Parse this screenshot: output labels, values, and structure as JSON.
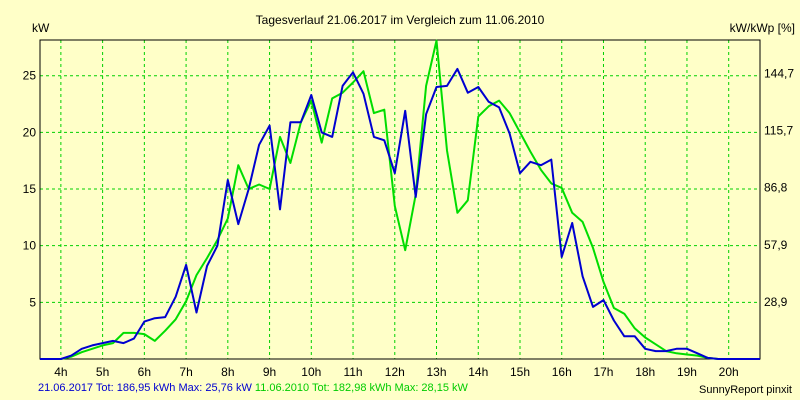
{
  "chart_data": {
    "type": "line",
    "title": "Tagesverlauf 21.06.2017 im Vergleich zum 11.06.2010",
    "ylabel": "kW",
    "y2label": "kW/kWp [%]",
    "xlim": [
      3.5,
      20.75
    ],
    "ylim": [
      0,
      28.15
    ],
    "x_ticks": [
      4,
      5,
      6,
      7,
      8,
      9,
      10,
      11,
      12,
      13,
      14,
      15,
      16,
      17,
      18,
      19,
      20
    ],
    "x_tick_labels": [
      "4h",
      "5h",
      "6h",
      "7h",
      "8h",
      "9h",
      "10h",
      "11h",
      "12h",
      "13h",
      "14h",
      "15h",
      "16h",
      "17h",
      "18h",
      "19h",
      "20h"
    ],
    "y_ticks": [
      5,
      10,
      15,
      20,
      25
    ],
    "y_tick_labels": [
      "5",
      "10",
      "15",
      "20",
      "25"
    ],
    "y2_ticks": [
      5.04,
      10.08,
      15.12,
      20.16,
      25.2
    ],
    "y2_tick_labels": [
      "28,9",
      "57,9",
      "86,8",
      "115,7",
      "144,7"
    ],
    "grid": true,
    "series": [
      {
        "name": "21.06.2017",
        "color": "#0000d0",
        "x": [
          3.5,
          3.75,
          4,
          4.25,
          4.5,
          4.75,
          5,
          5.25,
          5.5,
          5.75,
          6,
          6.25,
          6.5,
          6.75,
          7,
          7.25,
          7.5,
          7.75,
          8,
          8.25,
          8.5,
          8.75,
          9,
          9.25,
          9.5,
          9.75,
          10,
          10.25,
          10.5,
          10.75,
          11,
          11.25,
          11.5,
          11.75,
          12,
          12.25,
          12.5,
          12.75,
          13,
          13.25,
          13.5,
          13.75,
          14,
          14.25,
          14.5,
          14.75,
          15,
          15.25,
          15.5,
          15.75,
          16,
          16.25,
          16.5,
          16.75,
          17,
          17.25,
          17.5,
          17.75,
          18,
          18.25,
          18.5,
          18.75,
          19,
          19.25,
          19.5,
          19.75,
          20,
          20.25,
          20.5,
          20.75
        ],
        "values": [
          0,
          0,
          0,
          0.3,
          0.9,
          1.2,
          1.4,
          1.6,
          1.4,
          1.8,
          3.3,
          3.6,
          3.7,
          5.5,
          8.3,
          4.1,
          8.2,
          10,
          15.8,
          11.9,
          15,
          18.9,
          20.6,
          13.2,
          20.9,
          20.9,
          23.3,
          20,
          19.6,
          24.1,
          25.3,
          23.4,
          19.6,
          19.3,
          16.4,
          21.9,
          14.3,
          21.6,
          24,
          24.1,
          25.6,
          23.5,
          24,
          22.7,
          22.2,
          19.9,
          16.4,
          17.4,
          17.1,
          17.6,
          9,
          12,
          7.3,
          4.6,
          5.2,
          3.4,
          2,
          2,
          0.9,
          0.7,
          0.7,
          0.9,
          0.9,
          0.5,
          0.1,
          0,
          0,
          0,
          0,
          0
        ]
      },
      {
        "name": "11.06.2010",
        "color": "#00dd00",
        "x": [
          3.5,
          3.75,
          4,
          4.25,
          4.5,
          4.75,
          5,
          5.25,
          5.5,
          5.75,
          6,
          6.25,
          6.5,
          6.75,
          7,
          7.25,
          7.5,
          7.75,
          8,
          8.25,
          8.5,
          8.75,
          9,
          9.25,
          9.5,
          9.75,
          10,
          10.25,
          10.5,
          10.75,
          11,
          11.25,
          11.5,
          11.75,
          12,
          12.25,
          12.5,
          12.75,
          13,
          13.25,
          13.5,
          13.75,
          14,
          14.25,
          14.5,
          14.75,
          15,
          15.25,
          15.5,
          15.75,
          16,
          16.25,
          16.5,
          16.75,
          17,
          17.25,
          17.5,
          17.75,
          18,
          18.25,
          18.5,
          18.75,
          19,
          19.25,
          19.5,
          19.75,
          20,
          20.25,
          20.5,
          20.75
        ],
        "values": [
          0,
          0,
          0,
          0.2,
          0.6,
          0.9,
          1.2,
          1.4,
          2.3,
          2.3,
          2.2,
          1.6,
          2.5,
          3.5,
          5.1,
          7.4,
          8.9,
          10.5,
          12.4,
          17.1,
          15,
          15.4,
          15,
          19.6,
          17.3,
          20.9,
          22.8,
          19.1,
          23,
          23.5,
          24.4,
          25.4,
          21.7,
          22,
          13.5,
          9.6,
          14.5,
          24.1,
          28.1,
          18.4,
          12.9,
          14,
          21.4,
          22.3,
          22.8,
          21.7,
          20,
          18.3,
          16.7,
          15.5,
          15.1,
          12.9,
          12.1,
          9.8,
          6.8,
          4.5,
          4,
          2.7,
          1.9,
          1.3,
          0.7,
          0.5,
          0.4,
          0.3,
          0.1,
          0,
          0,
          0,
          0,
          0
        ]
      }
    ],
    "legend_placement": "bottom-left"
  },
  "footer": {
    "series1_date": "21.06.2017",
    "series1_stats": "Tot: 186,95 kWh Max: 25,76 kW",
    "series2_date": "11.06.2010",
    "series2_stats": "Tot: 182,98 kWh Max: 28,15 kW",
    "credit": "SunnyReport pinxit"
  }
}
